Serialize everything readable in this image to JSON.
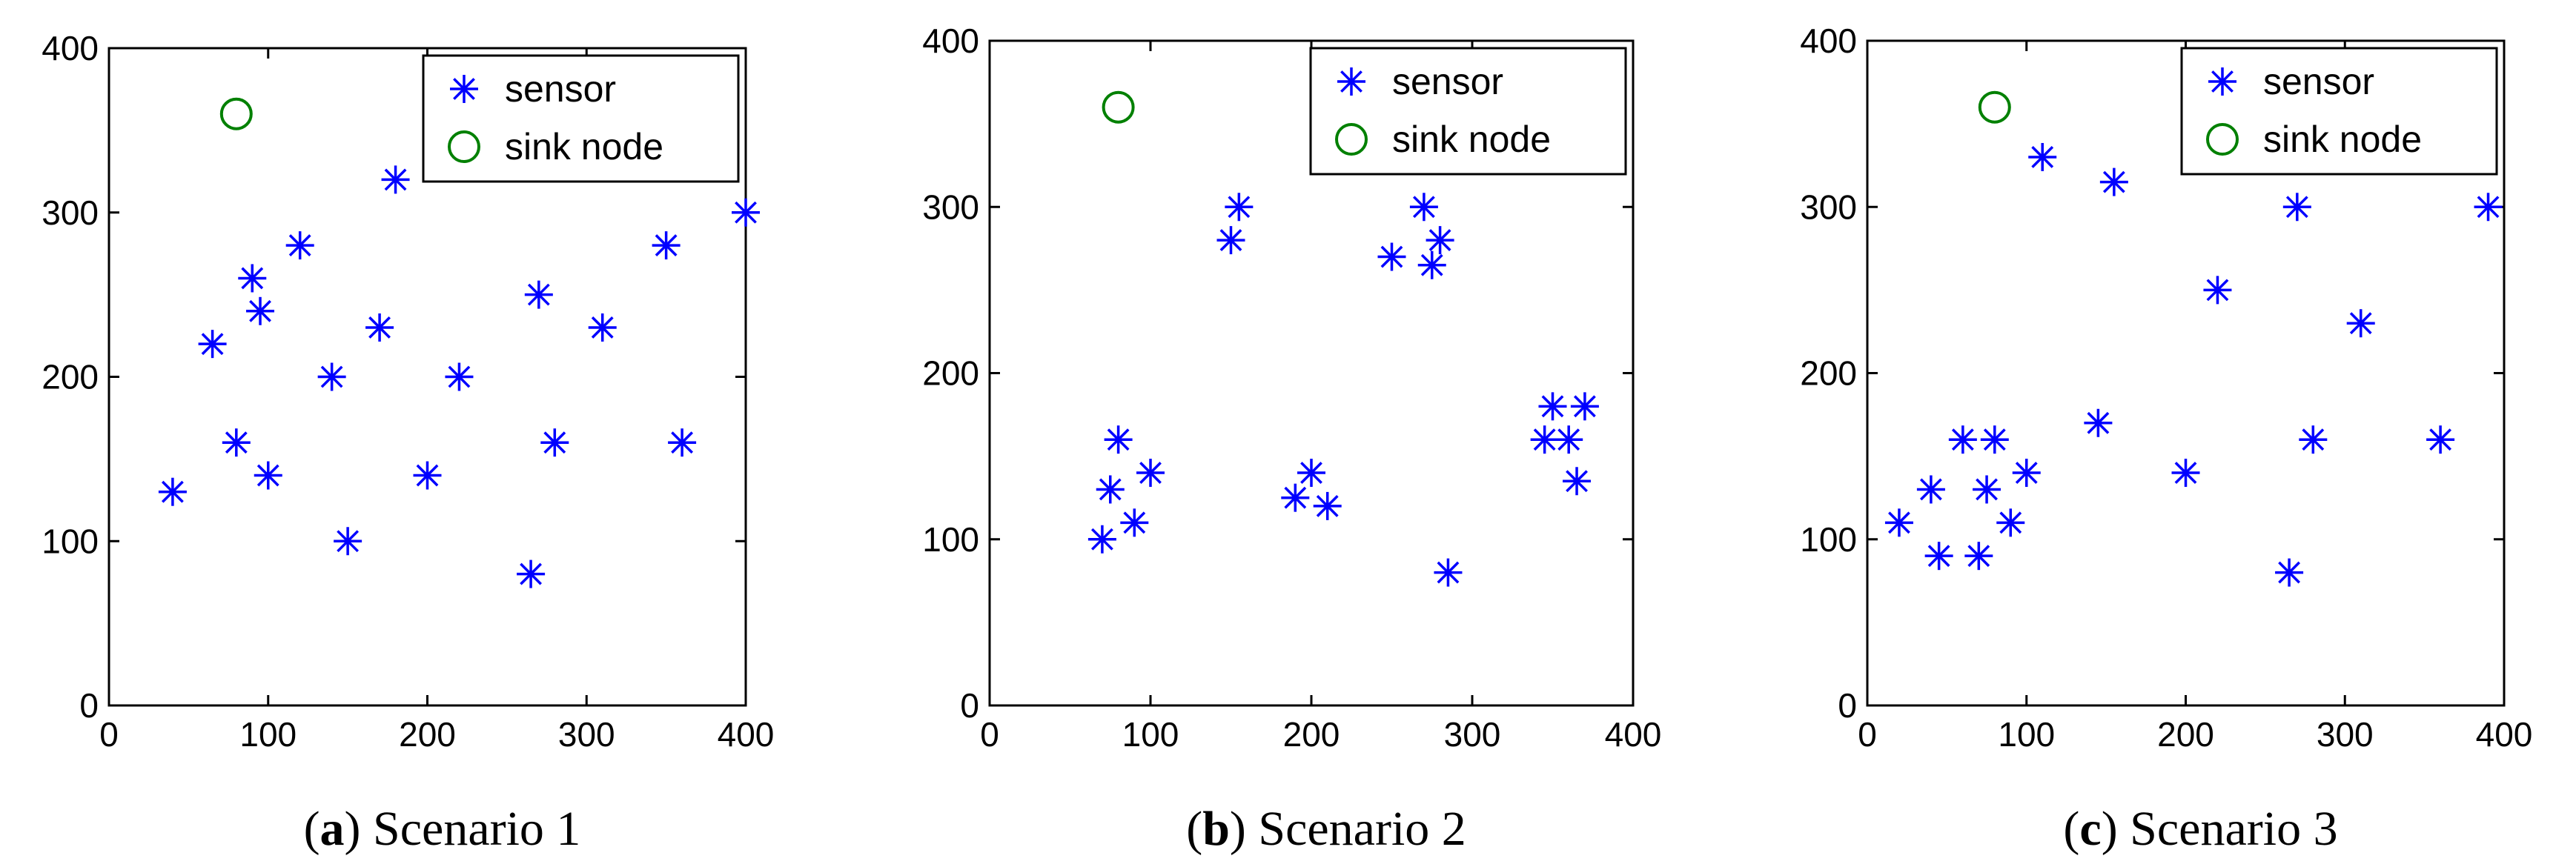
{
  "chart_data": [
    {
      "type": "scatter",
      "caption_letter": "a",
      "caption_text": "Scenario 1",
      "xlim": [
        0,
        400
      ],
      "ylim": [
        0,
        400
      ],
      "xticks": [
        0,
        100,
        200,
        300,
        400
      ],
      "yticks": [
        0,
        100,
        200,
        300,
        400
      ],
      "legend_position": "top-right",
      "grid": false,
      "series": [
        {
          "name": "sensor",
          "marker": "asterisk",
          "color": "#0000ff",
          "points": [
            [
              40,
              130
            ],
            [
              65,
              220
            ],
            [
              80,
              160
            ],
            [
              90,
              260
            ],
            [
              95,
              240
            ],
            [
              100,
              140
            ],
            [
              120,
              280
            ],
            [
              140,
              200
            ],
            [
              150,
              100
            ],
            [
              170,
              230
            ],
            [
              180,
              320
            ],
            [
              200,
              140
            ],
            [
              220,
              200
            ],
            [
              265,
              80
            ],
            [
              270,
              250
            ],
            [
              280,
              160
            ],
            [
              310,
              230
            ],
            [
              350,
              280
            ],
            [
              360,
              160
            ],
            [
              400,
              300
            ]
          ]
        },
        {
          "name": "sink node",
          "marker": "circle",
          "color": "#008000",
          "points": [
            [
              80,
              360
            ]
          ]
        }
      ]
    },
    {
      "type": "scatter",
      "caption_letter": "b",
      "caption_text": "Scenario 2",
      "xlim": [
        0,
        400
      ],
      "ylim": [
        0,
        400
      ],
      "xticks": [
        0,
        100,
        200,
        300,
        400
      ],
      "yticks": [
        0,
        100,
        200,
        300,
        400
      ],
      "legend_position": "top-right",
      "grid": false,
      "series": [
        {
          "name": "sensor",
          "marker": "asterisk",
          "color": "#0000ff",
          "points": [
            [
              70,
              100
            ],
            [
              75,
              130
            ],
            [
              80,
              160
            ],
            [
              90,
              110
            ],
            [
              100,
              140
            ],
            [
              150,
              280
            ],
            [
              155,
              300
            ],
            [
              190,
              125
            ],
            [
              200,
              140
            ],
            [
              210,
              120
            ],
            [
              250,
              270
            ],
            [
              270,
              300
            ],
            [
              275,
              265
            ],
            [
              280,
              280
            ],
            [
              285,
              80
            ],
            [
              345,
              160
            ],
            [
              350,
              180
            ],
            [
              360,
              160
            ],
            [
              365,
              135
            ],
            [
              370,
              180
            ]
          ]
        },
        {
          "name": "sink node",
          "marker": "circle",
          "color": "#008000",
          "points": [
            [
              80,
              360
            ]
          ]
        }
      ]
    },
    {
      "type": "scatter",
      "caption_letter": "c",
      "caption_text": "Scenario 3",
      "xlim": [
        0,
        400
      ],
      "ylim": [
        0,
        400
      ],
      "xticks": [
        0,
        100,
        200,
        300,
        400
      ],
      "yticks": [
        0,
        100,
        200,
        300,
        400
      ],
      "legend_position": "top-right",
      "grid": false,
      "series": [
        {
          "name": "sensor",
          "marker": "asterisk",
          "color": "#0000ff",
          "points": [
            [
              20,
              110
            ],
            [
              40,
              130
            ],
            [
              45,
              90
            ],
            [
              60,
              160
            ],
            [
              70,
              90
            ],
            [
              75,
              130
            ],
            [
              80,
              160
            ],
            [
              90,
              110
            ],
            [
              100,
              140
            ],
            [
              110,
              330
            ],
            [
              145,
              170
            ],
            [
              155,
              315
            ],
            [
              200,
              140
            ],
            [
              220,
              250
            ],
            [
              265,
              80
            ],
            [
              270,
              300
            ],
            [
              280,
              160
            ],
            [
              310,
              230
            ],
            [
              360,
              160
            ],
            [
              390,
              300
            ]
          ]
        },
        {
          "name": "sink node",
          "marker": "circle",
          "color": "#008000",
          "points": [
            [
              80,
              360
            ]
          ]
        }
      ]
    }
  ]
}
